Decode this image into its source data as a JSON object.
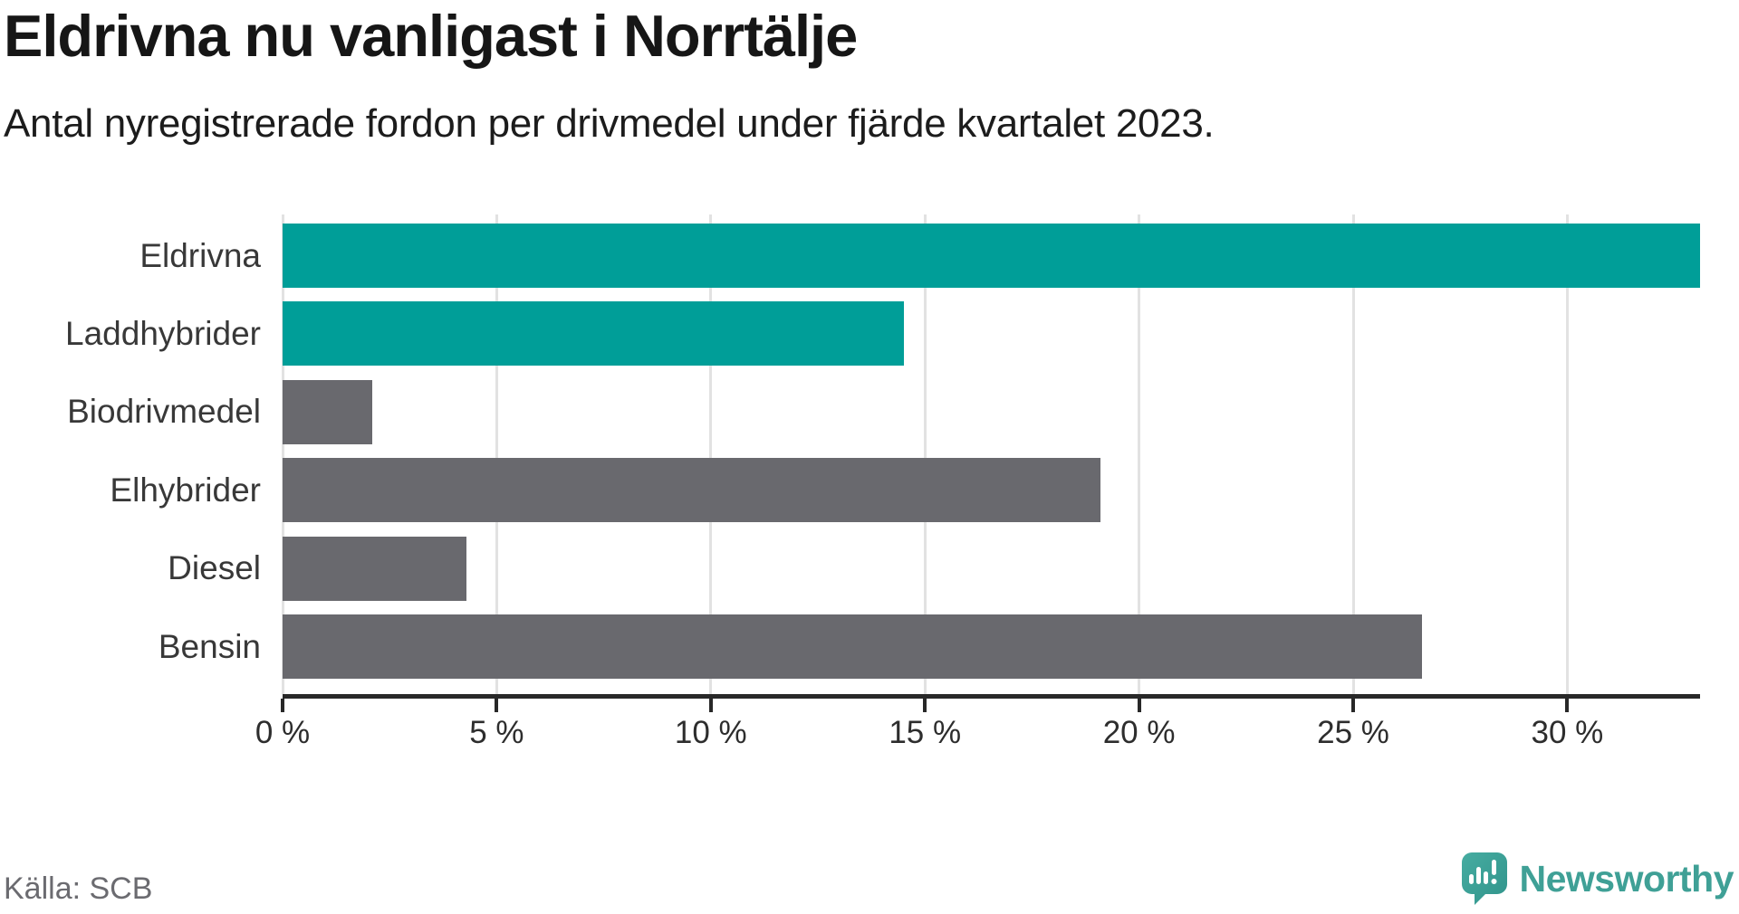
{
  "title": "Eldrivna nu vanligast i Norrtälje",
  "subtitle": "Antal nyregistrerade fordon per drivmedel under fjärde kvartalet 2023.",
  "source": "Källa: SCB",
  "brand": {
    "name": "Newsworthy",
    "icon": "newsworthy-speech-bubble-bar-chart-icon"
  },
  "colors": {
    "highlight_bar": "#009e98",
    "default_bar": "#69696e",
    "gridline": "#e2e2e2",
    "axis": "#282828",
    "logo_text": "#3fa096",
    "logo_gradient_start": "#46aca1",
    "logo_gradient_end": "#31948b"
  },
  "chart_data": {
    "type": "bar",
    "orientation": "horizontal",
    "title": "Eldrivna nu vanligast i Norrtälje",
    "subtitle": "Antal nyregistrerade fordon per drivmedel under fjärde kvartalet 2023.",
    "categories": [
      "Eldrivna",
      "Laddhybrider",
      "Biodrivmedel",
      "Elhybrider",
      "Diesel",
      "Bensin"
    ],
    "values": [
      33.1,
      14.5,
      2.1,
      19.1,
      4.3,
      26.6
    ],
    "unit": "%",
    "highlighted": [
      true,
      true,
      false,
      false,
      false,
      false
    ],
    "xlim": [
      0,
      33.1
    ],
    "tick_values": [
      0,
      5,
      10,
      15,
      20,
      25,
      30
    ],
    "tick_labels": [
      "0 %",
      "5 %",
      "10 %",
      "15 %",
      "20 %",
      "25 %",
      "30 %"
    ],
    "grid": true,
    "legend": false,
    "value_labels": false
  }
}
